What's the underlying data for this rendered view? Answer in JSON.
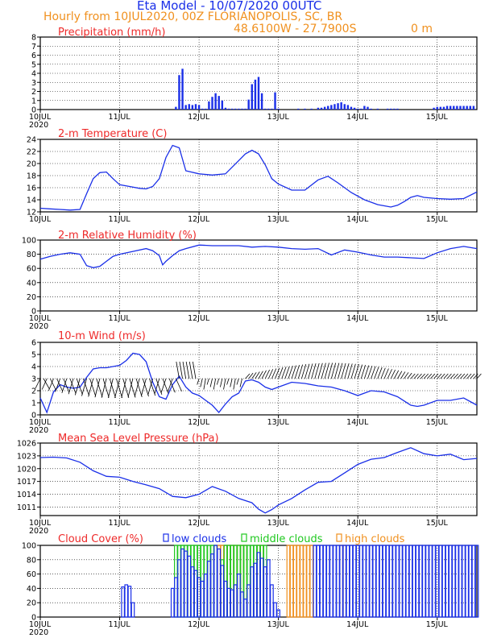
{
  "header": {
    "title": "Eta Model - 10/07/2020 00UTC",
    "subtitle": "Hourly from 10JUL2020, 00Z  FLORIANOPOLIS, SC, BR",
    "coords": "48.6100W - 27.7900S",
    "elevation": "0  m"
  },
  "colors": {
    "series": "#1a2fe8",
    "label": "#ee2a2a",
    "orange": "#f0901e",
    "green": "#1ec81e",
    "maroon": "#a0306a"
  },
  "x_axis": {
    "ticks": [
      "10JUL",
      "11JUL",
      "12JUL",
      "13JUL",
      "14JUL",
      "15JUL"
    ],
    "year": "2020",
    "hours_total": 132
  },
  "chart_data": [
    {
      "id": "precip",
      "type": "bar",
      "title": "Precipitation (mm/h)",
      "ylim": [
        0,
        8
      ],
      "yticks": [
        0,
        1,
        2,
        3,
        4,
        5,
        6,
        7,
        8
      ],
      "x_hours": [
        41,
        42,
        43,
        44,
        45,
        46,
        47,
        48,
        49,
        50,
        51,
        52,
        53,
        54,
        55,
        56,
        57,
        58,
        59,
        60,
        61,
        62,
        63,
        64,
        65,
        66,
        67,
        68,
        69,
        70,
        71,
        72,
        78,
        80,
        82,
        84,
        85,
        86,
        87,
        88,
        89,
        90,
        91,
        92,
        93,
        94,
        95,
        96,
        97,
        98,
        99,
        100,
        102,
        105,
        106,
        107,
        108,
        119,
        120,
        121,
        122,
        123,
        124,
        125,
        126,
        127,
        128,
        129,
        130,
        131
      ],
      "values": [
        0.3,
        3.8,
        4.5,
        0.5,
        0.6,
        0.5,
        0.6,
        0.5,
        0.1,
        0.1,
        0.9,
        1.4,
        1.8,
        1.5,
        1.0,
        0.2,
        0.1,
        0.1,
        0.1,
        0.1,
        0.1,
        0.1,
        1.1,
        2.8,
        3.3,
        3.6,
        1.8,
        0.1,
        0.1,
        0.1,
        1.9,
        0.1,
        0.1,
        0.1,
        0.1,
        0.2,
        0.2,
        0.3,
        0.4,
        0.5,
        0.6,
        0.7,
        0.8,
        0.6,
        0.5,
        0.3,
        0.2,
        0.1,
        0.1,
        0.4,
        0.3,
        0.1,
        0.1,
        0.1,
        0.1,
        0.1,
        0.1,
        0.2,
        0.3,
        0.3,
        0.3,
        0.4,
        0.4,
        0.4,
        0.4,
        0.4,
        0.4,
        0.4,
        0.4,
        0.4
      ]
    },
    {
      "id": "temp",
      "type": "line",
      "title": "2-m Temperature (C)",
      "ylim": [
        12,
        24
      ],
      "yticks": [
        12,
        14,
        16,
        18,
        20,
        22,
        24
      ],
      "x": [
        0,
        3,
        6,
        9,
        12,
        14,
        16,
        18,
        20,
        22,
        24,
        27,
        30,
        32,
        34,
        36,
        38,
        40,
        42,
        44,
        48,
        52,
        56,
        60,
        62,
        64,
        66,
        68,
        70,
        72,
        76,
        80,
        84,
        87,
        90,
        94,
        98,
        102,
        106,
        108,
        110,
        112,
        114,
        116,
        120,
        124,
        128,
        132
      ],
      "values": [
        12.6,
        12.5,
        12.4,
        12.3,
        12.4,
        15.0,
        17.5,
        18.5,
        18.6,
        17.5,
        16.5,
        16.2,
        15.9,
        15.8,
        16.2,
        17.5,
        21.0,
        23.0,
        22.6,
        18.8,
        18.3,
        18.1,
        18.3,
        20.5,
        21.6,
        22.2,
        21.6,
        19.8,
        17.5,
        16.6,
        15.6,
        15.6,
        17.3,
        17.9,
        16.8,
        15.2,
        14.0,
        13.2,
        12.8,
        13.1,
        13.7,
        14.4,
        14.7,
        14.4,
        14.2,
        14.1,
        14.2,
        15.3
      ]
    },
    {
      "id": "rh",
      "type": "line",
      "title": "2-m Relative Humidity (%)",
      "ylim": [
        0,
        100
      ],
      "yticks": [
        0,
        20,
        40,
        60,
        80,
        100
      ],
      "x": [
        0,
        3,
        6,
        9,
        12,
        14,
        16,
        18,
        20,
        22,
        24,
        28,
        32,
        34,
        36,
        37,
        38,
        40,
        42,
        44,
        48,
        52,
        56,
        60,
        64,
        68,
        72,
        76,
        80,
        84,
        88,
        92,
        96,
        100,
        104,
        108,
        112,
        116,
        120,
        124,
        128,
        132
      ],
      "values": [
        73,
        77,
        80,
        82,
        80,
        64,
        61,
        63,
        70,
        77,
        80,
        84,
        88,
        85,
        78,
        65,
        70,
        78,
        85,
        88,
        93,
        92,
        92,
        92,
        90,
        91,
        90,
        88,
        87,
        88,
        79,
        86,
        83,
        79,
        76,
        76,
        75,
        74,
        82,
        88,
        91,
        88
      ]
    },
    {
      "id": "wind",
      "type": "line",
      "title": "10-m Wind (m/s)",
      "ylim": [
        0,
        6
      ],
      "yticks": [
        0,
        1,
        2,
        3,
        4,
        5,
        6
      ],
      "x": [
        0,
        2,
        4,
        6,
        8,
        10,
        12,
        14,
        16,
        18,
        20,
        22,
        24,
        26,
        28,
        30,
        32,
        34,
        36,
        38,
        40,
        42,
        44,
        46,
        48,
        50,
        52,
        54,
        56,
        58,
        60,
        62,
        64,
        66,
        68,
        70,
        72,
        76,
        80,
        84,
        88,
        92,
        96,
        100,
        104,
        108,
        112,
        114,
        116,
        120,
        124,
        128,
        132
      ],
      "values": [
        1.4,
        0.2,
        1.9,
        2.5,
        2.3,
        2.2,
        2.3,
        3.1,
        3.8,
        3.9,
        3.9,
        4.0,
        4.1,
        4.5,
        5.1,
        5.0,
        4.4,
        2.7,
        1.5,
        1.3,
        2.5,
        3.2,
        2.3,
        1.8,
        1.6,
        1.2,
        0.8,
        0.2,
        0.9,
        1.5,
        1.8,
        2.8,
        2.9,
        2.7,
        2.3,
        2.1,
        2.3,
        2.7,
        2.6,
        2.4,
        2.3,
        2.0,
        1.6,
        2.0,
        1.9,
        1.5,
        0.8,
        0.7,
        0.8,
        1.2,
        1.2,
        1.4,
        0.8
      ],
      "barbs_x": [
        0,
        132
      ],
      "barbs": "wind barbs"
    },
    {
      "id": "mslp",
      "type": "line",
      "title": "Mean Sea Level Pressure (hPa)",
      "ylim": [
        1009,
        1026
      ],
      "yticks": [
        1011,
        1014,
        1017,
        1020,
        1023,
        1026
      ],
      "x": [
        0,
        4,
        8,
        12,
        16,
        20,
        24,
        28,
        32,
        36,
        40,
        44,
        48,
        52,
        56,
        60,
        64,
        66,
        68,
        70,
        72,
        76,
        80,
        84,
        88,
        92,
        96,
        100,
        104,
        108,
        112,
        116,
        120,
        124,
        128,
        132
      ],
      "values": [
        1022.6,
        1022.7,
        1022.5,
        1021.5,
        1019.5,
        1018.2,
        1018.0,
        1017.0,
        1016.2,
        1015.3,
        1013.5,
        1013.2,
        1014.0,
        1015.8,
        1014.7,
        1013.0,
        1012.0,
        1010.5,
        1009.6,
        1010.4,
        1011.5,
        1013.0,
        1015.0,
        1016.8,
        1017.0,
        1019.0,
        1021.0,
        1022.2,
        1022.6,
        1023.8,
        1024.9,
        1023.5,
        1023.0,
        1023.4,
        1022.1,
        1022.4
      ]
    },
    {
      "id": "cloud",
      "type": "bar",
      "title": "Cloud Cover (%)",
      "ylim": [
        0,
        100
      ],
      "yticks": [
        0,
        20,
        40,
        60,
        80,
        100
      ],
      "legend": [
        "low clouds",
        "middle clouds",
        "high clouds"
      ],
      "low": {
        "x": [
          25,
          26,
          27,
          28,
          40,
          41,
          42,
          43,
          44,
          45,
          46,
          47,
          48,
          49,
          50,
          51,
          52,
          53,
          54,
          55,
          56,
          57,
          58,
          59,
          60,
          61,
          62,
          63,
          64,
          65,
          66,
          67,
          68,
          69,
          70,
          71,
          72,
          83,
          84,
          85,
          86,
          87,
          88,
          89,
          90,
          91,
          92,
          93,
          94,
          95,
          96,
          97,
          98,
          99,
          100,
          101,
          102,
          103,
          104,
          105,
          106,
          107,
          108,
          109,
          110,
          111,
          112,
          113,
          114,
          115,
          116,
          117,
          118,
          119,
          120,
          121,
          122,
          123,
          124,
          125,
          126,
          127,
          128,
          129,
          130,
          131,
          132
        ],
        "values": [
          42,
          45,
          43,
          20,
          40,
          55,
          80,
          95,
          92,
          85,
          70,
          65,
          55,
          50,
          60,
          78,
          88,
          100,
          95,
          72,
          50,
          40,
          38,
          45,
          60,
          35,
          25,
          45,
          70,
          75,
          90,
          82,
          70,
          80,
          45,
          20,
          10,
          100,
          100,
          100,
          100,
          100,
          100,
          100,
          100,
          100,
          100,
          100,
          100,
          100,
          100,
          100,
          100,
          100,
          100,
          100,
          100,
          100,
          100,
          100,
          100,
          100,
          100,
          100,
          100,
          100,
          100,
          100,
          100,
          100,
          100,
          100,
          100,
          100,
          100,
          100,
          100,
          100,
          100,
          100,
          100,
          100,
          100,
          100,
          100,
          100,
          100
        ]
      },
      "mid": {
        "x": [
          41,
          42,
          43,
          44,
          45,
          46,
          47,
          48,
          49,
          50,
          51,
          52,
          53,
          55,
          56,
          57,
          58,
          59,
          60,
          61,
          62,
          63,
          64,
          65,
          66,
          67,
          68
        ],
        "values": [
          100,
          100,
          100,
          100,
          100,
          100,
          100,
          100,
          100,
          100,
          100,
          100,
          100,
          80,
          100,
          100,
          100,
          100,
          100,
          100,
          100,
          100,
          100,
          100,
          100,
          100,
          100
        ]
      },
      "high": {
        "x": [
          54,
          55,
          56,
          57,
          58,
          59,
          60,
          61,
          62,
          66,
          67,
          75,
          76,
          77,
          78,
          79,
          80,
          81,
          82,
          91,
          92
        ],
        "values": [
          100,
          100,
          100,
          100,
          100,
          100,
          100,
          100,
          100,
          100,
          100,
          100,
          100,
          100,
          100,
          100,
          100,
          100,
          100,
          100,
          100
        ]
      }
    }
  ]
}
